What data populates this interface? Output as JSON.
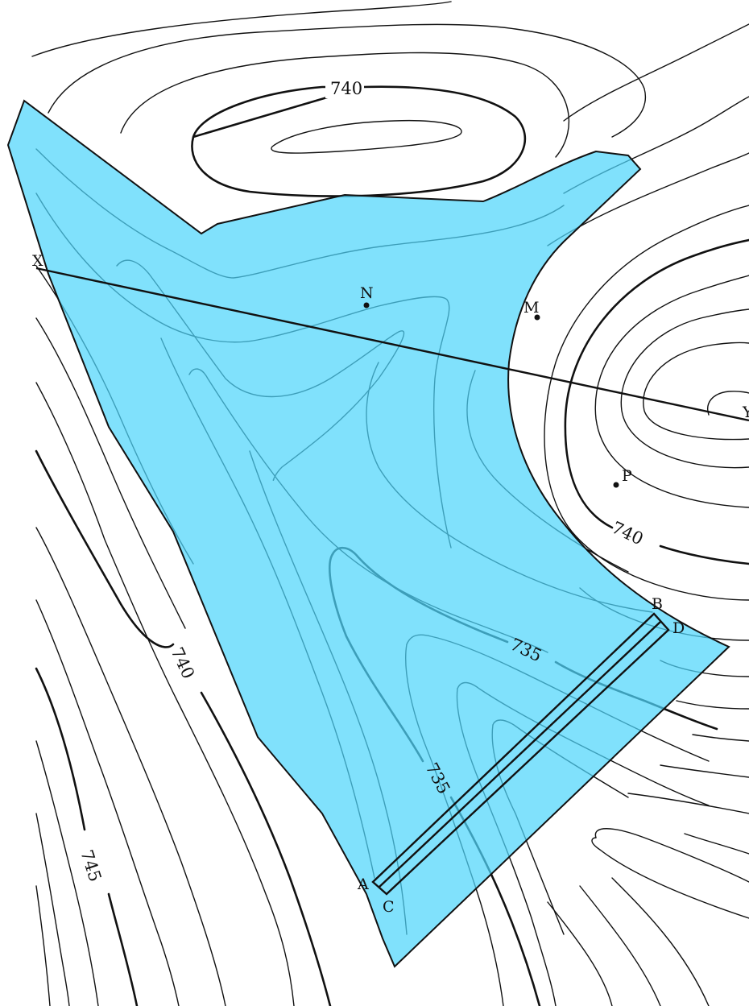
{
  "map": {
    "colors": {
      "paper": "#ffffff",
      "contour": "#111111",
      "zone_fill": "#4fd6fb",
      "zone_opacity": 0.72
    },
    "contour_labels": [
      {
        "id": "label-740-top",
        "text": "740"
      },
      {
        "id": "label-740-right",
        "text": "740"
      },
      {
        "id": "label-740-left",
        "text": "740"
      },
      {
        "id": "label-745-left",
        "text": "745"
      },
      {
        "id": "label-735-mid",
        "text": "735"
      },
      {
        "id": "label-735-lower",
        "text": "735"
      }
    ],
    "points": [
      {
        "id": "point-n",
        "label": "N"
      },
      {
        "id": "point-m",
        "label": "M"
      },
      {
        "id": "point-p",
        "label": "P"
      }
    ],
    "section_line": {
      "start_label": "X",
      "end_label": "Y"
    },
    "rectangle_corners": {
      "a": "A",
      "b": "B",
      "c": "C",
      "d": "D"
    }
  }
}
